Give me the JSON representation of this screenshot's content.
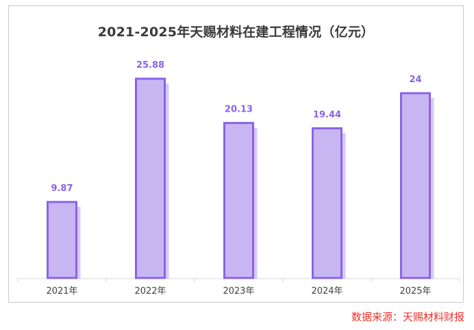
{
  "chart_data": {
    "type": "bar",
    "title": "2021-2025年天赐材料在建工程情况（亿元）",
    "categories": [
      "2021年",
      "2022年",
      "2023年",
      "2024年",
      "2025年"
    ],
    "values": [
      9.87,
      25.88,
      20.13,
      19.44,
      24
    ],
    "value_labels": [
      "9.87",
      "25.88",
      "20.13",
      "19.44",
      "24"
    ],
    "ylim": [
      0,
      26.5
    ],
    "grid": false,
    "legend": "none",
    "colors": {
      "bar_fill": "#c8b6f2",
      "bar_shadow": "#b79cf0",
      "bar_border": "#8a63e6",
      "label": "#8a63e6",
      "axis": "#d4d4d4",
      "tick_text": "#404040"
    }
  },
  "source_text": "数据来源：天赐材料财报"
}
